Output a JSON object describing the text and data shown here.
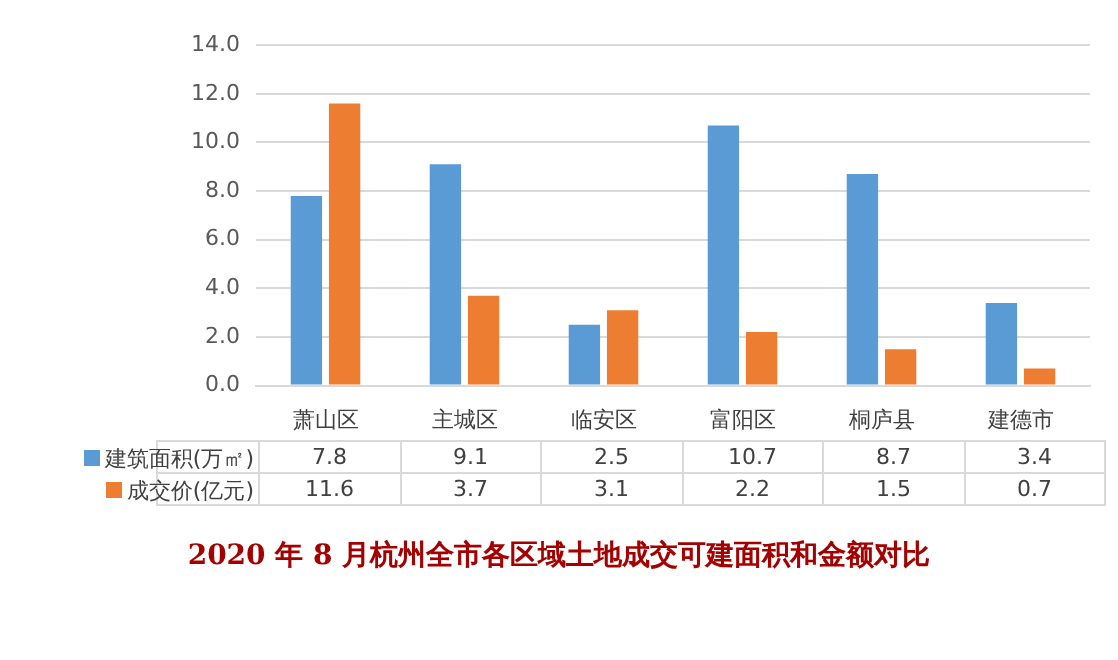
{
  "chart_data": {
    "type": "bar",
    "title": "2020 年 8 月杭州全市各区域土地成交可建面积和金额对比",
    "categories": [
      "萧山区",
      "主城区",
      "临安区",
      "富阳区",
      "桐庐县",
      "建德市"
    ],
    "series": [
      {
        "name": "建筑面积(万㎡)",
        "color": "#5b9bd5",
        "values": [
          7.8,
          9.1,
          2.5,
          10.7,
          8.7,
          3.4
        ]
      },
      {
        "name": "成交价(亿元)",
        "color": "#ed7d31",
        "values": [
          11.6,
          3.7,
          3.1,
          2.2,
          1.5,
          0.7
        ]
      }
    ],
    "ylim": [
      0,
      14
    ],
    "yticks": [
      {
        "value": 0,
        "label": "0.0"
      },
      {
        "value": 2,
        "label": "2.0"
      },
      {
        "value": 4,
        "label": "4.0"
      },
      {
        "value": 6,
        "label": "6.0"
      },
      {
        "value": 8,
        "label": "8.0"
      },
      {
        "value": 10,
        "label": "10.0"
      },
      {
        "value": 12,
        "label": "12.0"
      },
      {
        "value": 14,
        "label": "14.0"
      }
    ],
    "grid": "y",
    "legend": "bottom",
    "data_labels": true
  }
}
